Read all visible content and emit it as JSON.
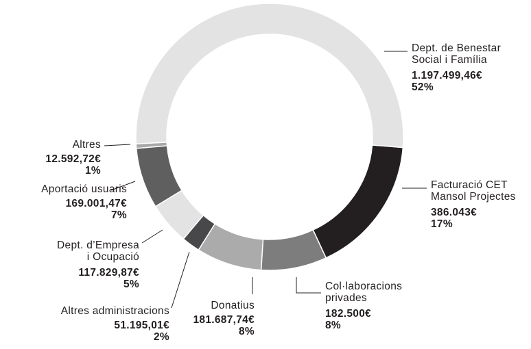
{
  "chart_data": {
    "type": "donut",
    "categories": [
      "Dept. de Benestar\nSocial i Família",
      "Facturació CET\nMansol Projectes",
      "Col·laboracions\nprivades",
      "Donatius",
      "Altres administracions",
      "Dept. d’Empresa\ni Ocupació",
      "Aportació usuaris",
      "Altres"
    ],
    "values": [
      1197499.46,
      386043,
      182500,
      181687.74,
      51195.01,
      117829.87,
      169001.47,
      12592.72
    ],
    "value_labels": [
      "1.197.499,46€",
      "386.043€",
      "182.500€",
      "181.687,74€",
      "51.195,01€",
      "117.829,87€",
      "169.001,47€",
      "12.592,72€"
    ],
    "percents": [
      52,
      17,
      8,
      8,
      2,
      5,
      7,
      1
    ],
    "percent_labels": [
      "52%",
      "17%",
      "8%",
      "8%",
      "2%",
      "5%",
      "7%",
      "1%"
    ],
    "colors": [
      "#e3e3e3",
      "#231f20",
      "#7d7d7d",
      "#ababab",
      "#48484a",
      "#e3e3e3",
      "#5f5f5f",
      "#a8a8a8"
    ]
  }
}
